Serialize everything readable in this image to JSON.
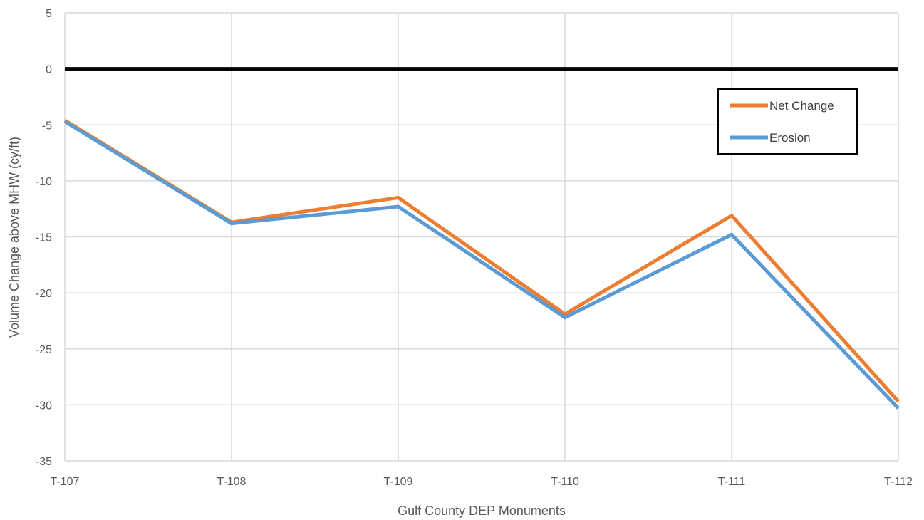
{
  "chart_data": {
    "type": "line",
    "title": "",
    "xlabel": "Gulf County DEP Monuments",
    "ylabel": "Volume Change above MHW (cy/ft)",
    "categories": [
      "T-107",
      "T-108",
      "T-109",
      "T-110",
      "T-111",
      "T-112"
    ],
    "ylim": [
      -35,
      5
    ],
    "yticks": [
      5,
      0,
      -5,
      -10,
      -15,
      -20,
      -25,
      -30,
      -35
    ],
    "grid": true,
    "legend_position": "top-right",
    "zero_line": true,
    "series": [
      {
        "name": "Net Change",
        "color": "#ED7D31",
        "values": [
          -4.6,
          -13.7,
          -11.5,
          -21.9,
          -13.1,
          -29.7
        ]
      },
      {
        "name": "Erosion",
        "color": "#5B9BD5",
        "values": [
          -4.7,
          -13.8,
          -12.3,
          -22.2,
          -14.8,
          -30.3
        ]
      }
    ]
  }
}
